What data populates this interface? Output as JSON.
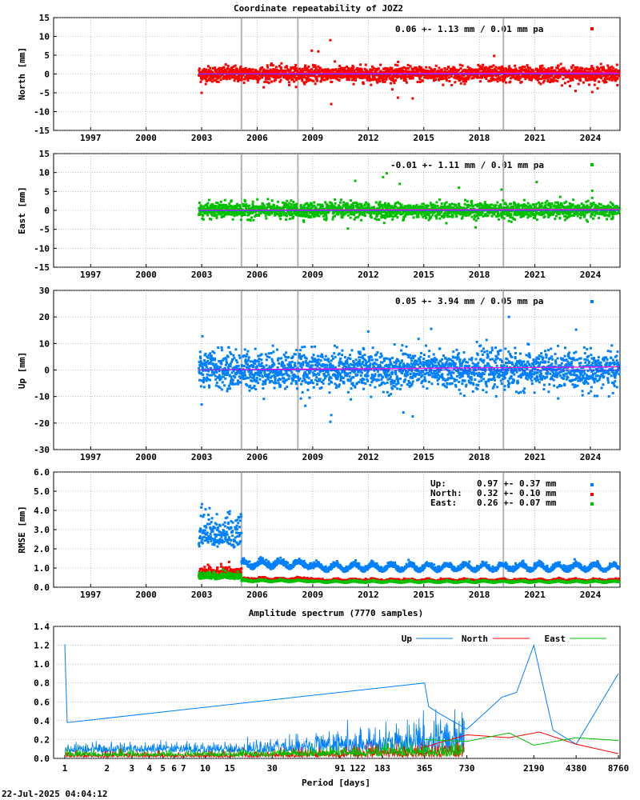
{
  "title": "Coordinate repeatability of JOZ2",
  "timestamp": "22-Jul-2025 04:04:12",
  "x_ticks": [
    "1997",
    "2000",
    "2003",
    "2006",
    "2009",
    "2012",
    "2015",
    "2018",
    "2021",
    "2024"
  ],
  "chart_data": [
    {
      "id": "north",
      "type": "scatter",
      "title": "Coordinate repeatability of JOZ2",
      "ylabel": "North [mm]",
      "ylim": [
        -15,
        15
      ],
      "xlim": [
        1995.0,
        2025.6
      ],
      "yticks": [
        -15,
        -10,
        -5,
        0,
        5,
        10,
        15
      ],
      "ytick_labels": [
        "-15",
        "-10",
        "-5",
        "0",
        "5",
        "10",
        "15"
      ],
      "stat": "0.06 +- 1.13 mm /  0.01 mm pa",
      "color": "#ff0000",
      "data_start": 2002.85,
      "data_end": 2025.55,
      "scatter_sigma": 1.13,
      "trend_mm_pa": 0.01,
      "equipment_changes": [
        2005.15,
        2008.2,
        2019.3
      ],
      "outliers": [
        [
          2009.95,
          9.0
        ],
        [
          2009.3,
          6.0
        ],
        [
          2010.0,
          -8.0
        ],
        [
          2003.0,
          -5.0
        ],
        [
          2013.6,
          -6.3
        ],
        [
          2014.4,
          -6.5
        ],
        [
          2018.8,
          4.8
        ],
        [
          2023.2,
          -4.5
        ],
        [
          2024.1,
          -4.8
        ],
        [
          2008.95,
          6.2
        ]
      ]
    },
    {
      "id": "east",
      "type": "scatter",
      "ylabel": "East [mm]",
      "ylim": [
        -15,
        15
      ],
      "xlim": [
        1995.0,
        2025.6
      ],
      "yticks": [
        -15,
        -10,
        -5,
        0,
        5,
        10,
        15
      ],
      "ytick_labels": [
        "-15",
        "-10",
        "-5",
        "0",
        "5",
        "10",
        "15"
      ],
      "stat": "-0.01 +- 1.11 mm /  0.01 mm pa",
      "color": "#00c000",
      "data_start": 2002.85,
      "data_end": 2025.55,
      "scatter_sigma": 1.11,
      "trend_mm_pa": 0.01,
      "equipment_changes": [
        2005.15,
        2008.2,
        2019.3
      ],
      "outliers": [
        [
          2011.3,
          7.8
        ],
        [
          2013.0,
          9.8
        ],
        [
          2012.8,
          8.8
        ],
        [
          2021.1,
          7.5
        ],
        [
          2019.2,
          5.5
        ],
        [
          2024.1,
          5.2
        ],
        [
          2010.9,
          -4.8
        ],
        [
          2017.8,
          -4.5
        ],
        [
          2013.7,
          7.0
        ],
        [
          2016.9,
          6.0
        ]
      ]
    },
    {
      "id": "up",
      "type": "scatter",
      "ylabel": "Up [mm]",
      "ylim": [
        -30,
        30
      ],
      "xlim": [
        1995.0,
        2025.6
      ],
      "yticks": [
        -30,
        -20,
        -10,
        0,
        10,
        20,
        30
      ],
      "ytick_labels": [
        "-30",
        "-20",
        "-10",
        "0",
        "10",
        "20",
        "30"
      ],
      "stat": "0.05 +- 3.94 mm /  0.05 mm pa",
      "color": "#0080ff",
      "data_start": 2002.85,
      "data_end": 2025.55,
      "scatter_sigma": 3.94,
      "trend_mm_pa": 0.05,
      "equipment_changes": [
        2005.15,
        2008.2,
        2019.3
      ],
      "outliers": [
        [
          2009.95,
          -19.5
        ],
        [
          2010.0,
          -17.0
        ],
        [
          2013.9,
          -16.0
        ],
        [
          2014.4,
          -17.5
        ],
        [
          2015.4,
          15.5
        ],
        [
          2019.6,
          20.0
        ],
        [
          2003.0,
          -13.0
        ],
        [
          2008.6,
          -13.5
        ],
        [
          2012.0,
          14.5
        ]
      ]
    },
    {
      "id": "rmse",
      "type": "scatter",
      "ylabel": "RMSE [mm]",
      "ylim": [
        0,
        6
      ],
      "xlim": [
        1995.0,
        2025.6
      ],
      "yticks": [
        0,
        1,
        2,
        3,
        4,
        5,
        6
      ],
      "ytick_labels": [
        "0.0",
        "1.0",
        "2.0",
        "3.0",
        "4.0",
        "5.0",
        "6.0"
      ],
      "equipment_changes": [
        2005.15,
        2019.3
      ],
      "series": [
        {
          "name": "Up:",
          "stat": "0.97 +- 0.37 mm",
          "color": "#0080ff",
          "early_level": 2.2,
          "level": 0.95,
          "seasonal_amp": 0.15
        },
        {
          "name": "North:",
          "stat": "0.32 +- 0.10 mm",
          "color": "#ff0000",
          "early_level": 0.6,
          "level": 0.33,
          "seasonal_amp": 0.04
        },
        {
          "name": "East:",
          "stat": "0.26 +- 0.07 mm",
          "color": "#00c000",
          "early_level": 0.45,
          "level": 0.26,
          "seasonal_amp": 0.03
        }
      ]
    },
    {
      "id": "spectrum",
      "type": "line",
      "title": "Amplitude spectrum (7770 samples)",
      "xlabel": "Period [days]",
      "ylim": [
        0,
        1.4
      ],
      "xscale": "log",
      "xlim": [
        1,
        8760
      ],
      "yticks": [
        0,
        0.2,
        0.4,
        0.6,
        0.8,
        1.0,
        1.2,
        1.4
      ],
      "ytick_labels": [
        "0.0",
        "0.2",
        "0.4",
        "0.6",
        "0.8",
        "1.0",
        "1.2",
        "1.4"
      ],
      "xticks": [
        1,
        2,
        3,
        4,
        5,
        6,
        7,
        10,
        15,
        30,
        91,
        122,
        183,
        365,
        730,
        2190,
        4380,
        8760
      ],
      "xtick_labels": [
        "1",
        "2",
        "3",
        "4",
        "5",
        "6",
        "7",
        "10",
        "15",
        "30",
        "91",
        "122",
        "183",
        "365",
        "730",
        "2190",
        "4380",
        "8760"
      ],
      "legend_position": "top-right",
      "series": [
        {
          "name": "Up",
          "color": "#0080ff",
          "peaks": [
            [
              1.0,
              1.21
            ],
            [
              1.04,
              0.38
            ],
            [
              365,
              0.8
            ],
            [
              390,
              0.55
            ],
            [
              460,
              0.48
            ],
            [
              730,
              0.31
            ],
            [
              1300,
              0.65
            ],
            [
              1650,
              0.7
            ],
            [
              2190,
              1.2
            ],
            [
              3000,
              0.3
            ],
            [
              4380,
              0.15
            ],
            [
              8760,
              0.9
            ]
          ]
        },
        {
          "name": "North",
          "color": "#ff0000",
          "peaks": [
            [
              365,
              0.12
            ],
            [
              730,
              0.25
            ],
            [
              1460,
              0.22
            ],
            [
              2400,
              0.28
            ],
            [
              4380,
              0.15
            ],
            [
              8760,
              0.05
            ]
          ]
        },
        {
          "name": "East",
          "color": "#00c000",
          "peaks": [
            [
              365,
              0.2
            ],
            [
              730,
              0.18
            ],
            [
              1460,
              0.27
            ],
            [
              2190,
              0.14
            ],
            [
              4380,
              0.22
            ],
            [
              8760,
              0.19
            ]
          ]
        }
      ]
    }
  ]
}
